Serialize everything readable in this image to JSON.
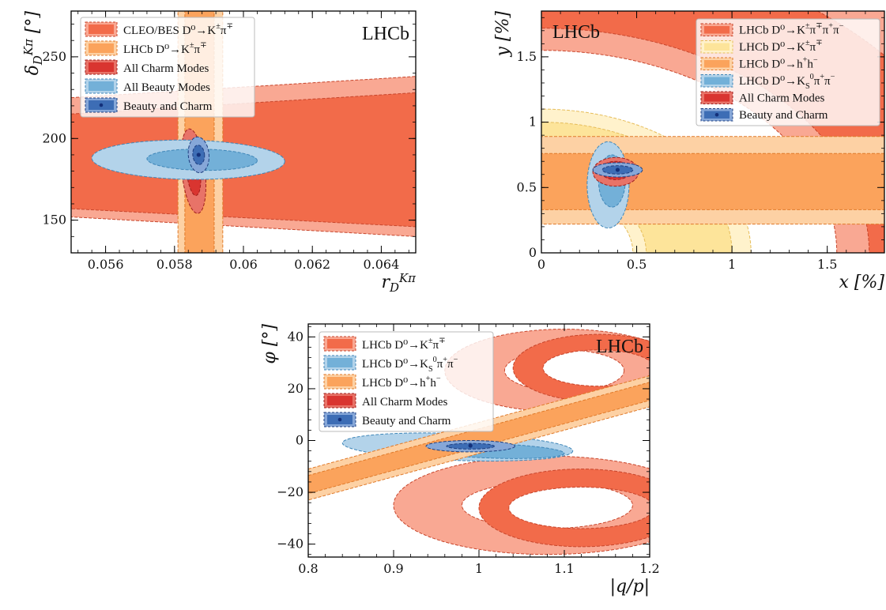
{
  "colors": {
    "red_dark": "#f26b4a",
    "red_light": "#f9a893",
    "orange_dark": "#fba35c",
    "orange_light": "#fdd1a4",
    "yellow_dark": "#fde49a",
    "yellow_light": "#fff2cc",
    "charm_dark": "#d93530",
    "charm_light": "#e87368",
    "beauty_dark": "#73b0d8",
    "beauty_light": "#b3d3ea",
    "combo_dark": "#3d6db5",
    "combo_light": "#86a7d8"
  },
  "chart_data": [
    {
      "type": "contour",
      "experiment_label": "LHCb",
      "xlabel": "r_D^{Kπ}",
      "ylabel": "δ_D^{Kπ} [°]",
      "xlim": [
        0.055,
        0.065
      ],
      "ylim": [
        130,
        278
      ],
      "xticks": [
        {
          "v": 0.056,
          "t": "0.056"
        },
        {
          "v": 0.058,
          "t": "0.058"
        },
        {
          "v": 0.06,
          "t": "0.06"
        },
        {
          "v": 0.062,
          "t": "0.062"
        },
        {
          "v": 0.064,
          "t": "0.064"
        }
      ],
      "yticks": [
        {
          "v": 150,
          "t": "150"
        },
        {
          "v": 200,
          "t": "200"
        },
        {
          "v": 250,
          "t": "250"
        }
      ],
      "series": [
        {
          "name": "CLEO/BES D⁰→K^±π^∓",
          "color": "red",
          "bands": [
            {
              "x0": 0.055,
              "x1": 0.065,
              "top0": 225,
              "top1": 238,
              "bot0": 152,
              "bot1": 140,
              "w": "light"
            },
            {
              "x0": 0.055,
              "x1": 0.065,
              "top0": 215,
              "top1": 228,
              "bot0": 157,
              "bot1": 146,
              "w": "dark"
            }
          ]
        },
        {
          "name": "LHCb D⁰→K^±π^∓",
          "color": "orange",
          "vbands": [
            {
              "x0": 0.0581,
              "x1": 0.0594,
              "w": "light"
            },
            {
              "x0": 0.0583,
              "x1": 0.05915,
              "w": "dark"
            }
          ]
        },
        {
          "name": "All Charm Modes",
          "color": "charm",
          "ellipses": [
            {
              "cx": 0.05855,
              "cy": 180,
              "rx": 0.00034,
              "ry": 26,
              "rot": 6,
              "w": "light"
            },
            {
              "cx": 0.05855,
              "cy": 180,
              "rx": 0.0002,
              "ry": 15,
              "rot": 6,
              "w": "dark"
            }
          ]
        },
        {
          "name": "All Beauty Modes",
          "color": "beauty",
          "ellipses": [
            {
              "cx": 0.0584,
              "cy": 187,
              "rx": 0.0028,
              "ry": 12,
              "rot": -1,
              "w": "light"
            },
            {
              "cx": 0.0588,
              "cy": 187,
              "rx": 0.0016,
              "ry": 6.5,
              "rot": -1,
              "w": "dark"
            }
          ]
        },
        {
          "name": "Beauty and Charm",
          "color": "combo",
          "marker": [
            0.0587,
            190
          ],
          "ellipses": [
            {
              "cx": 0.0587,
              "cy": 190,
              "rx": 0.0003,
              "ry": 11,
              "rot": 5,
              "w": "light"
            },
            {
              "cx": 0.0587,
              "cy": 190,
              "rx": 0.00017,
              "ry": 6,
              "rot": 5,
              "w": "dark"
            }
          ]
        }
      ]
    },
    {
      "type": "contour",
      "experiment_label": "LHCb",
      "xlabel": "x [%]",
      "ylabel": "y [%]",
      "xlim": [
        0,
        1.8
      ],
      "ylim": [
        0,
        1.85
      ],
      "xticks": [
        {
          "v": 0,
          "t": "0"
        },
        {
          "v": 0.5,
          "t": "0.5"
        },
        {
          "v": 1,
          "t": "1"
        },
        {
          "v": 1.5,
          "t": "1.5"
        }
      ],
      "yticks": [
        {
          "v": 0,
          "t": "0"
        },
        {
          "v": 0.5,
          "t": "0.5"
        },
        {
          "v": 1,
          "t": "1"
        },
        {
          "v": 1.5,
          "t": "1.5"
        }
      ],
      "series": [
        {
          "name": "LHCb D⁰→K^±π^∓π^+π^−",
          "color": "red",
          "rings": [
            {
              "r0": 1.55,
              "r1": 2.6,
              "w": "light"
            },
            {
              "r0": 1.72,
              "r1": 2.35,
              "w": "dark"
            }
          ]
        },
        {
          "name": "LHCb D⁰→K^±π^∓",
          "color": "yellow",
          "rings": [
            {
              "r0": 0.48,
              "r1": 1.1,
              "w": "light"
            },
            {
              "r0": 0.55,
              "r1": 1.0,
              "w": "dark"
            }
          ]
        },
        {
          "name": "LHCb D⁰→h^+h^−",
          "color": "orange",
          "hbands": [
            {
              "y0": 0.22,
              "y1": 0.89,
              "w": "light"
            },
            {
              "y0": 0.33,
              "y1": 0.76,
              "w": "dark"
            }
          ]
        },
        {
          "name": "LHCb D⁰→K_S^0π^+π^−",
          "color": "beauty",
          "ellipses": [
            {
              "cx": 0.35,
              "cy": 0.52,
              "rx": 0.11,
              "ry": 0.33,
              "rot": 0,
              "w": "light"
            },
            {
              "cx": 0.37,
              "cy": 0.55,
              "rx": 0.07,
              "ry": 0.2,
              "rot": 0,
              "w": "dark"
            }
          ]
        },
        {
          "name": "All Charm Modes",
          "color": "charm",
          "ellipses": [
            {
              "cx": 0.39,
              "cy": 0.62,
              "rx": 0.12,
              "ry": 0.11,
              "rot": 0,
              "w": "light"
            },
            {
              "cx": 0.39,
              "cy": 0.63,
              "rx": 0.08,
              "ry": 0.07,
              "rot": 0,
              "w": "dark"
            }
          ]
        },
        {
          "name": "Beauty and Charm",
          "color": "combo",
          "marker": [
            0.4,
            0.635
          ],
          "ellipses": [
            {
              "cx": 0.4,
              "cy": 0.635,
              "rx": 0.13,
              "ry": 0.055,
              "rot": 0,
              "w": "light"
            },
            {
              "cx": 0.4,
              "cy": 0.635,
              "rx": 0.08,
              "ry": 0.032,
              "rot": 0,
              "w": "dark"
            }
          ]
        }
      ]
    },
    {
      "type": "contour",
      "experiment_label": "LHCb",
      "xlabel": "|q/p|",
      "ylabel": "φ [°]",
      "xlim": [
        0.8,
        1.2
      ],
      "ylim": [
        -45,
        45
      ],
      "xticks": [
        {
          "v": 0.8,
          "t": "0.8"
        },
        {
          "v": 0.9,
          "t": "0.9"
        },
        {
          "v": 1,
          "t": "1"
        },
        {
          "v": 1.1,
          "t": "1.1"
        },
        {
          "v": 1.2,
          "t": "1.2"
        }
      ],
      "yticks": [
        {
          "v": -40,
          "t": "−40"
        },
        {
          "v": -20,
          "t": "−20"
        },
        {
          "v": 0,
          "t": "0"
        },
        {
          "v": 20,
          "t": "20"
        },
        {
          "v": 40,
          "t": "40"
        }
      ],
      "series": [
        {
          "name": "LHCb D⁰→K^±π^∓",
          "color": "red",
          "lobes": [
            {
              "cx": 1.1,
              "cy": 27,
              "rx": 0.14,
              "ry": 16,
              "irx": 0.07,
              "iry": 8,
              "w": "light"
            },
            {
              "cx": 1.08,
              "cy": -25,
              "rx": 0.18,
              "ry": 19,
              "irx": 0.1,
              "iry": 9,
              "w": "light"
            },
            {
              "cx": 1.14,
              "cy": 28,
              "rx": 0.1,
              "ry": 13,
              "irx": 0.065,
              "iry": 7,
              "w": "dark"
            },
            {
              "cx": 1.12,
              "cy": -26,
              "rx": 0.12,
              "ry": 15,
              "irx": 0.085,
              "iry": 8,
              "w": "dark"
            }
          ]
        },
        {
          "name": "LHCb D⁰→K_S^0π^+π^−",
          "color": "beauty",
          "ellipses": [
            {
              "cx": 0.975,
              "cy": -2.5,
              "rx": 0.135,
              "ry": 5.2,
              "rot": -2,
              "w": "light"
            },
            {
              "cx": 1.015,
              "cy": -4,
              "rx": 0.085,
              "ry": 2.8,
              "rot": -2,
              "w": "dark"
            }
          ]
        },
        {
          "name": "LHCb D⁰→h^+h^−",
          "color": "orange",
          "slant": [
            {
              "x0": 0.8,
              "y0": -17,
              "x1": 1.2,
              "y1": 19,
              "h": 6,
              "w": "light"
            },
            {
              "x0": 0.8,
              "y0": -17,
              "x1": 1.2,
              "y1": 19,
              "h": 3.5,
              "w": "dark"
            }
          ]
        },
        {
          "name": "All Charm Modes",
          "color": "charm",
          "ellipses": []
        },
        {
          "name": "Beauty and Charm",
          "color": "combo",
          "marker": [
            0.99,
            -2
          ],
          "ellipses": [
            {
              "cx": 0.99,
              "cy": -2.2,
              "rx": 0.052,
              "ry": 2.2,
              "rot": 0,
              "w": "light"
            },
            {
              "cx": 0.99,
              "cy": -2.2,
              "rx": 0.028,
              "ry": 1.1,
              "rot": 0,
              "w": "dark"
            }
          ]
        }
      ]
    }
  ]
}
